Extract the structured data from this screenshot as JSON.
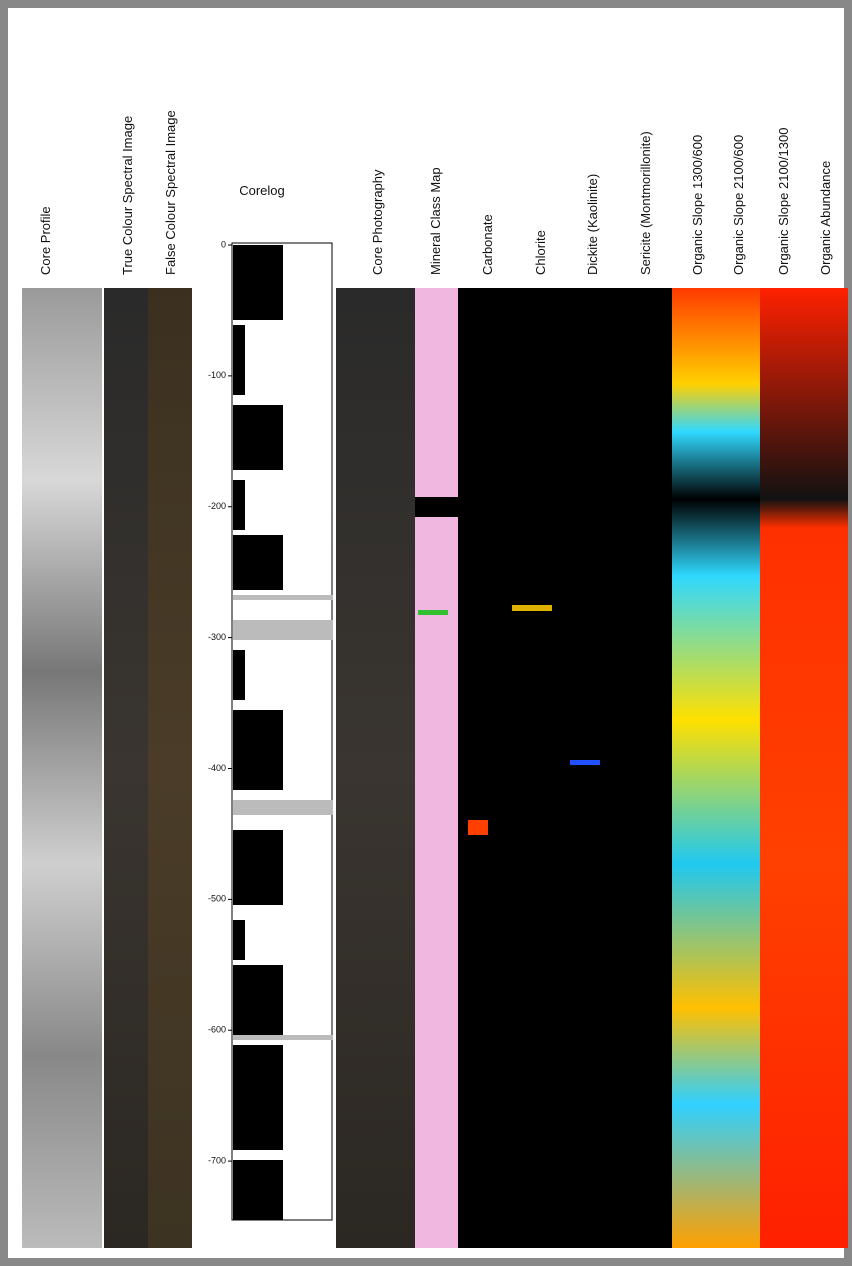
{
  "headers": [
    "Core Profile",
    "True Colour Spectral Image",
    "False Colour Spectral Image",
    "Corelog",
    "Core Photography",
    "Mineral Class Map",
    "Carbonate",
    "Chlorite",
    "Dickite (Kaolinite)",
    "Sericite (Montmorillonite)",
    "Organic Slope 1300/600",
    "Organic Slope 2100/600",
    "Organic Slope 2100/1300",
    "Organic Abundance"
  ],
  "corelog": {
    "ylim": [
      0,
      -745
    ],
    "yticks": [
      0,
      -100,
      -200,
      -300,
      -400,
      -500,
      -600,
      -700
    ]
  }
}
